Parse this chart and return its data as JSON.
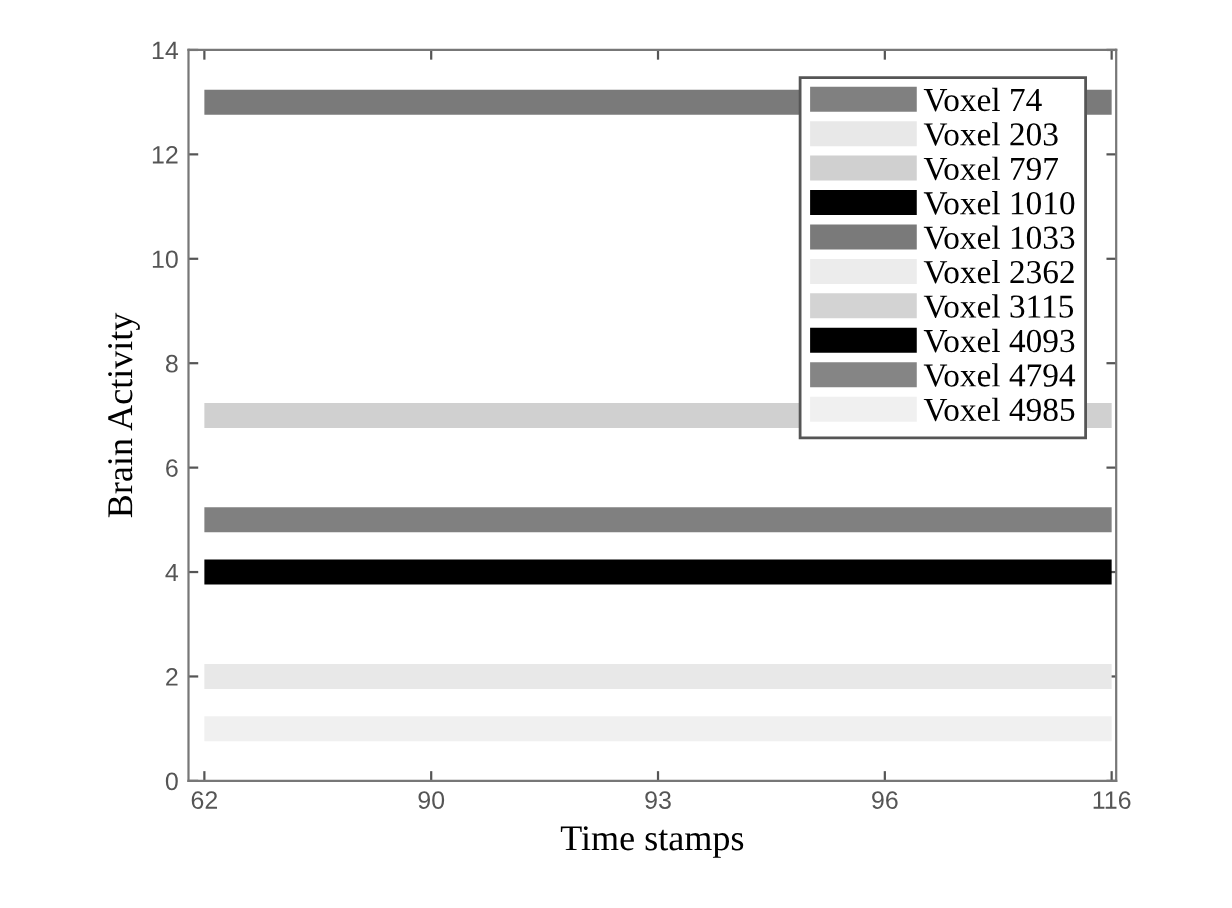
{
  "chart_data": {
    "type": "line",
    "xlabel": "Time stamps",
    "ylabel": "Brain Activity",
    "categories": [
      "62",
      "90",
      "93",
      "96",
      "116"
    ],
    "ylim": [
      0,
      14
    ],
    "yticks": [
      0,
      2,
      4,
      6,
      8,
      10,
      12,
      14
    ],
    "grid": false,
    "legend": "top right",
    "marker": "none",
    "line_style": "solid",
    "series": [
      {
        "name": "Voxel 74",
        "color": "#808080",
        "values": [
          5,
          5,
          5,
          5,
          5
        ]
      },
      {
        "name": "Voxel 203",
        "color": "#e8e8e8",
        "values": [
          2,
          2,
          2,
          2,
          2
        ]
      },
      {
        "name": "Voxel 797",
        "color": "#d0d0d0",
        "values": [
          7,
          7,
          7,
          7,
          7
        ]
      },
      {
        "name": "Voxel 1010",
        "color": "#000000",
        "values": [
          4,
          4,
          4,
          4,
          4
        ]
      },
      {
        "name": "Voxel 1033",
        "color": "#7a7a7a",
        "values": [
          13,
          13,
          13,
          13,
          13
        ]
      },
      {
        "name": "Voxel 2362",
        "color": "#ececec",
        "values": [
          null,
          null,
          null,
          null,
          null
        ]
      },
      {
        "name": "Voxel 3115",
        "color": "#d3d3d3",
        "values": [
          null,
          null,
          null,
          null,
          null
        ]
      },
      {
        "name": "Voxel 4093",
        "color": "#000000",
        "values": [
          null,
          null,
          null,
          null,
          null
        ]
      },
      {
        "name": "Voxel 4794",
        "color": "#858585",
        "values": [
          null,
          null,
          null,
          null,
          null
        ]
      },
      {
        "name": "Voxel 4985",
        "color": "#f0f0f0",
        "values": [
          1,
          1,
          1,
          1,
          1
        ]
      }
    ]
  }
}
